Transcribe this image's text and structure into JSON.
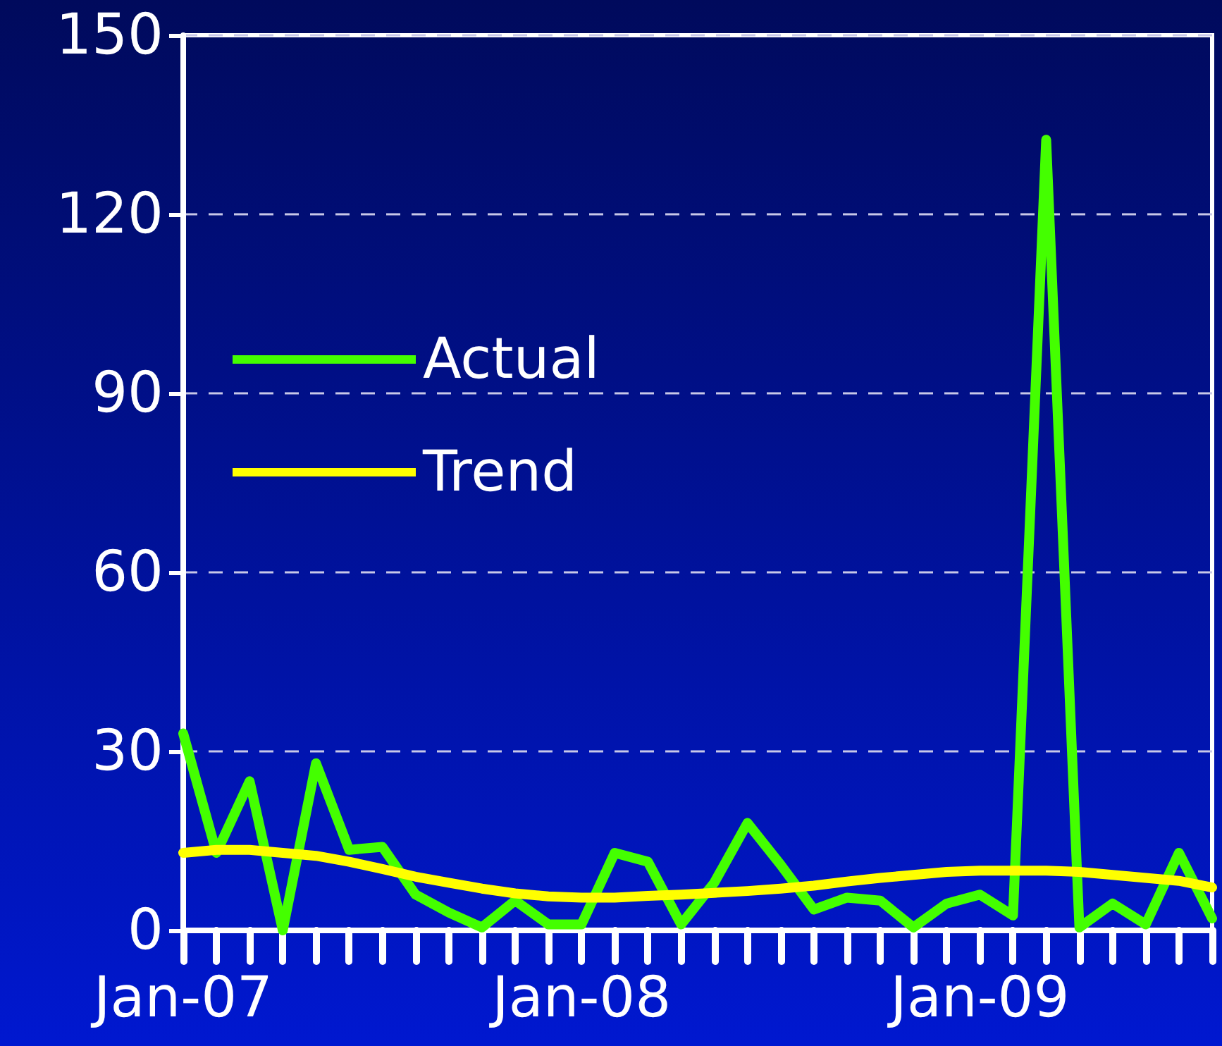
{
  "chart_data": {
    "type": "line",
    "categories": [
      "Jan-07",
      null,
      null,
      null,
      null,
      null,
      null,
      null,
      null,
      null,
      null,
      null,
      "Jan-08",
      null,
      null,
      null,
      null,
      null,
      null,
      null,
      null,
      null,
      null,
      null,
      "Jan-09",
      null,
      null,
      null,
      null,
      null,
      null,
      null
    ],
    "series": [
      {
        "name": "Actual",
        "color": "#44ff00",
        "values": [
          33,
          13,
          25,
          0,
          28,
          13.5,
          14,
          6,
          3,
          0.5,
          5,
          1,
          1,
          13,
          11.5,
          1,
          8,
          18,
          11,
          3.5,
          5.5,
          5,
          0.5,
          4.5,
          6,
          2.5,
          132.5,
          0.5,
          4.5,
          1,
          13,
          2
        ]
      },
      {
        "name": "Trend",
        "color": "#ffff00",
        "values": [
          13,
          13.5,
          13.5,
          13,
          12.5,
          11.5,
          10.3,
          9,
          8,
          7,
          6.2,
          5.7,
          5.5,
          5.5,
          5.8,
          6,
          6.3,
          6.6,
          7,
          7.5,
          8.2,
          8.8,
          9.3,
          9.8,
          10,
          10,
          10,
          9.8,
          9.3,
          8.8,
          8.3,
          7.2
        ]
      }
    ],
    "ylim": [
      0,
      150
    ],
    "yticks": [
      0,
      30,
      60,
      90,
      120,
      150
    ],
    "grid": "y",
    "legend": "top left",
    "marker": "none",
    "line_style": "solid"
  }
}
